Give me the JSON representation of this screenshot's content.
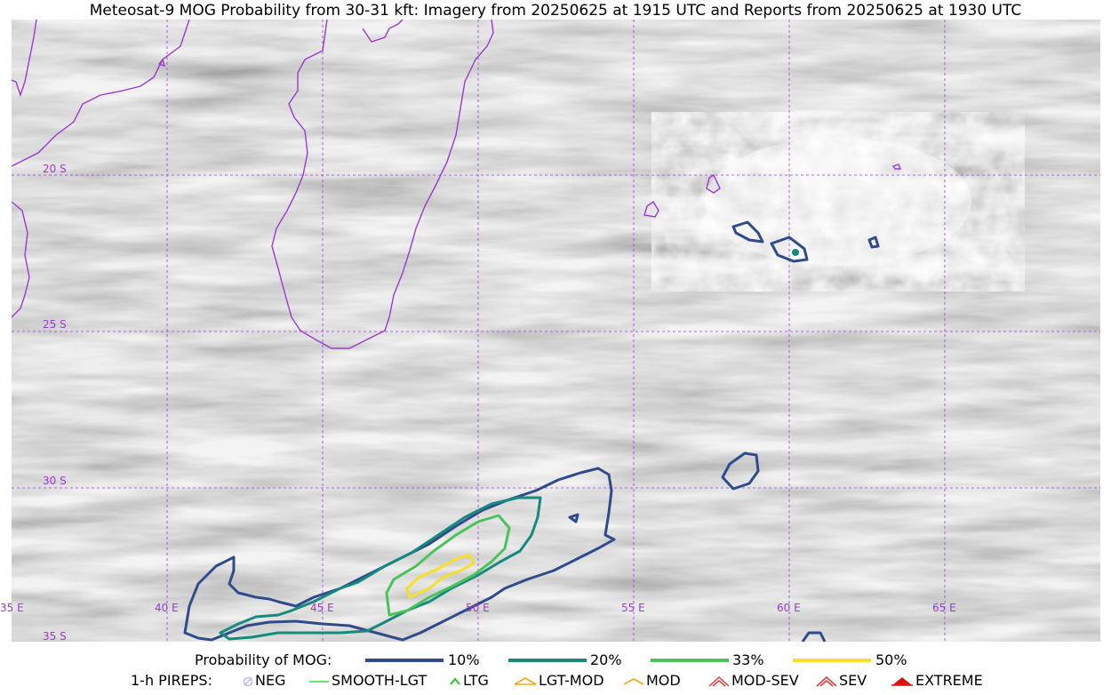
{
  "title": "Meteosat-9 MOG Probability from 30-31 kft: Imagery from 20250625 at 1915 UTC and Reports from 20250625 at 1930 UTC",
  "map": {
    "lat_labels": [
      "20 S",
      "25 S",
      "30 S",
      "35 S"
    ],
    "lon_labels": [
      "35 E",
      "40 E",
      "45 E",
      "50 E",
      "55 E",
      "60 E",
      "65 E"
    ],
    "gridline_color": "#9a3ad0",
    "coastline_color": "#9a3ad0"
  },
  "legend": {
    "probability_label": "Probability of MOG:",
    "probability_levels": [
      {
        "label": "10%",
        "color": "#2f4b8a"
      },
      {
        "label": "20%",
        "color": "#178a7e"
      },
      {
        "label": "33%",
        "color": "#4cc25a"
      },
      {
        "label": "50%",
        "color": "#f5e02a"
      }
    ],
    "pireps_label": "1-h PIREPS:",
    "pireps": [
      {
        "label": "NEG",
        "icon": "neg-circle-icon",
        "color": "#b9b9f2"
      },
      {
        "label": "SMOOTH-LGT",
        "icon": "smooth-lgt-line-icon",
        "color": "#3fdc3f"
      },
      {
        "label": "LTG",
        "icon": "ltg-caret-icon",
        "color": "#22cc22"
      },
      {
        "label": "LGT-MOD",
        "icon": "lgt-mod-caret-icon",
        "color": "#f2a91c"
      },
      {
        "label": "MOD",
        "icon": "mod-caret-icon",
        "color": "#f2a91c"
      },
      {
        "label": "MOD-SEV",
        "icon": "mod-sev-caret-icon",
        "color": "#e83a3a"
      },
      {
        "label": "SEV",
        "icon": "sev-caret-icon",
        "color": "#e83a3a"
      },
      {
        "label": "EXTREME",
        "icon": "extreme-caret-icon",
        "color": "#e01010"
      }
    ]
  }
}
